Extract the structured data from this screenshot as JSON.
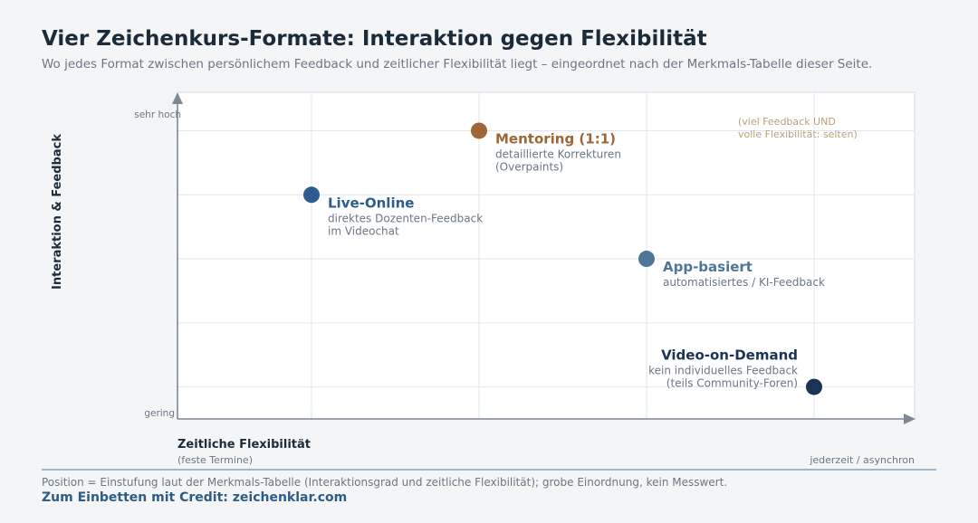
{
  "title": "Vier Zeichenkurs-Formate: Interaktion gegen Flexibilität",
  "subtitle": "Wo jedes Format zwischen persönlichem Feedback und zeitlicher Flexibilität liegt – eingeordnet nach der Merkmals-Tabelle dieser Seite.",
  "footnote": "Position = Einstufung laut der Merkmals-Tabelle (Interaktionsgrad und zeitliche Flexibilität); grobe Einordnung, kein Messwert.",
  "credit": "Zum Einbetten mit Credit: zeichenklar.com",
  "chart_data": {
    "type": "scatter",
    "xlabel": "Zeitliche Flexibilität",
    "x_low_label": "(feste Termine)",
    "x_high_label": "jederzeit / asynchron",
    "ylabel": "Interaktion & Feedback",
    "y_high_label": "sehr hoch",
    "y_low_label": "gering",
    "xlim": [
      0,
      5.5
    ],
    "ylim": [
      0,
      5.1
    ],
    "grid": true,
    "annotation": [
      "(viel Feedback UND",
      "volle Flexibilität: selten)"
    ],
    "points": [
      {
        "name": "Mentoring (1:1)",
        "desc": [
          "detaillierte Korrekturen",
          "(Overpaints)"
        ],
        "x": 2.25,
        "y": 4.5,
        "color": "#9c6636"
      },
      {
        "name": "Live-Online",
        "desc": [
          "direktes Dozenten-Feedback",
          "im Videochat"
        ],
        "x": 1.0,
        "y": 3.5,
        "color": "#2e5c8d"
      },
      {
        "name": "App-basiert",
        "desc": [
          "automatisiertes / KI-Feedback"
        ],
        "x": 3.5,
        "y": 2.5,
        "color": "#4f7697"
      },
      {
        "name": "Video-on-Demand",
        "desc": [
          "kein individuelles Feedback",
          "(teils Community-Foren)"
        ],
        "x": 4.75,
        "y": 0.5,
        "color": "#1b3455"
      }
    ]
  }
}
